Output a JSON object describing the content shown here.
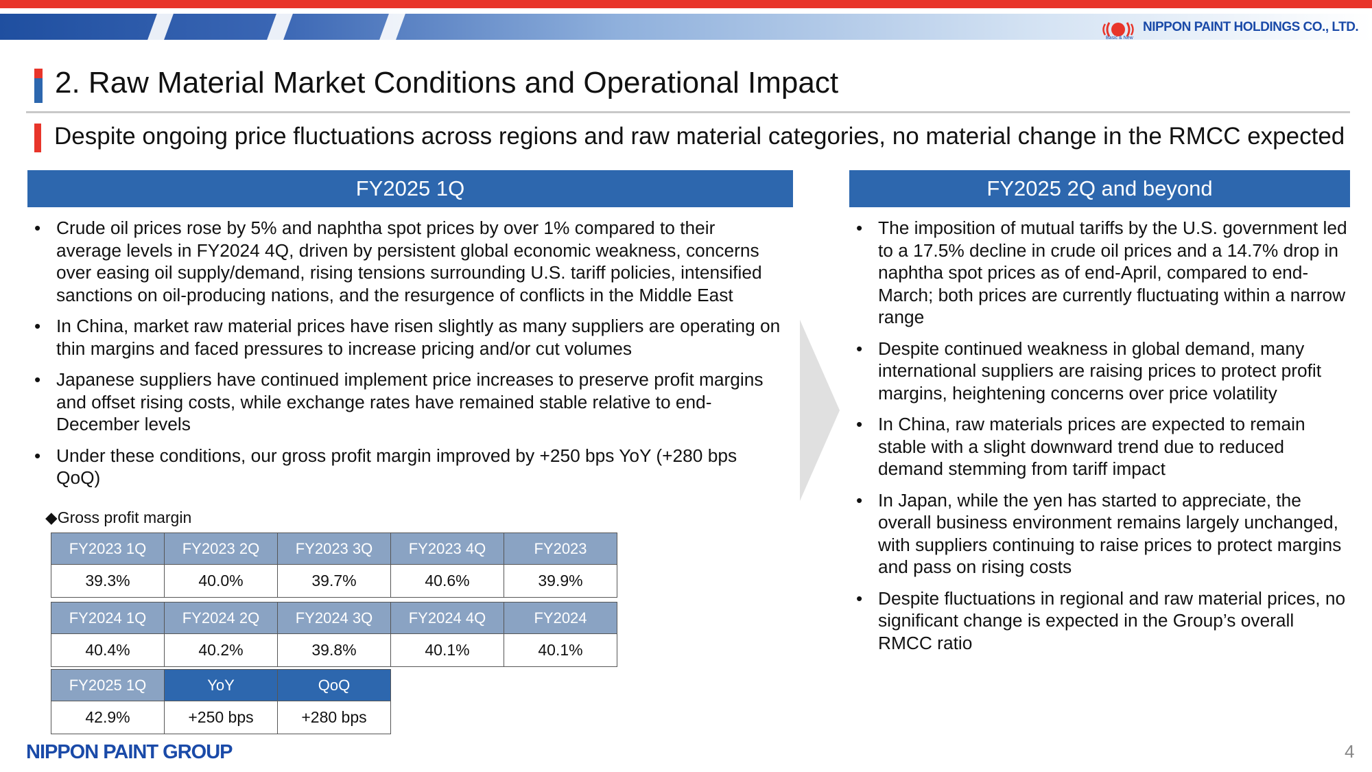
{
  "header": {
    "company_name": "NIPPON PAINT HOLDINGS CO., LTD.",
    "company_tagline": "Basic & New"
  },
  "title": "2. Raw Material Market Conditions and Operational Impact",
  "subtitle": "Despite ongoing price fluctuations across regions and raw material categories, no material change in the RMCC expected",
  "left_column": {
    "header": "FY2025 1Q",
    "bullets": [
      "Crude oil prices rose by 5% and naphtha spot prices by over 1% compared to their average levels in FY2024 4Q, driven by persistent global economic weakness, concerns over easing oil supply/demand, rising tensions surrounding U.S. tariff policies, intensified sanctions on oil-producing nations, and the resurgence of conflicts in the Middle East",
      "In China, market raw material prices have risen slightly as many suppliers are operating on thin margins and faced pressures to increase pricing and/or cut volumes",
      "Japanese suppliers have continued implement price increases to preserve profit margins and offset rising costs, while exchange rates have remained stable relative to end-December levels",
      "Under these conditions, our gross profit margin improved by +250 bps YoY (+280 bps QoQ)"
    ]
  },
  "right_column": {
    "header": "FY2025 2Q and beyond",
    "bullets": [
      "The imposition of mutual tariffs by the U.S. government led to a 17.5% decline in crude oil prices and a 14.7% drop in naphtha spot prices as of end-April, compared to end-March; both prices are currently fluctuating within a narrow range",
      "Despite continued weakness in global demand, many international suppliers are raising prices to protect profit margins, heightening concerns over price volatility",
      "In China, raw materials prices are expected to remain stable with a slight downward trend due to reduced demand stemming from tariff impact",
      "In Japan, while the yen has started to appreciate, the overall business environment remains largely unchanged, with suppliers continuing to raise prices to protect margins and pass on rising costs",
      "Despite fluctuations in regional and raw material prices, no significant change is expected in the Group’s overall RMCC ratio"
    ]
  },
  "gross_profit_margin": {
    "label": "◆Gross profit margin",
    "fy2023": {
      "headers": [
        "FY2023 1Q",
        "FY2023 2Q",
        "FY2023 3Q",
        "FY2023 4Q",
        "FY2023"
      ],
      "values": [
        "39.3%",
        "40.0%",
        "39.7%",
        "40.6%",
        "39.9%"
      ]
    },
    "fy2024": {
      "headers": [
        "FY2024 1Q",
        "FY2024 2Q",
        "FY2024 3Q",
        "FY2024 4Q",
        "FY2024"
      ],
      "values": [
        "40.4%",
        "40.2%",
        "39.8%",
        "40.1%",
        "40.1%"
      ]
    },
    "fy2025": {
      "headers": [
        "FY2025 1Q",
        "YoY",
        "QoQ"
      ],
      "values": [
        "42.9%",
        "+250 bps",
        "+280 bps"
      ]
    }
  },
  "footer": {
    "group_logo": "NIPPON PAINT GROUP",
    "page_number": "4"
  },
  "colors": {
    "accent_red": "#e8352a",
    "accent_blue": "#2d67ae",
    "table_header_gray_blue": "#8aa3c3",
    "logo_blue": "#1a4aa8"
  }
}
